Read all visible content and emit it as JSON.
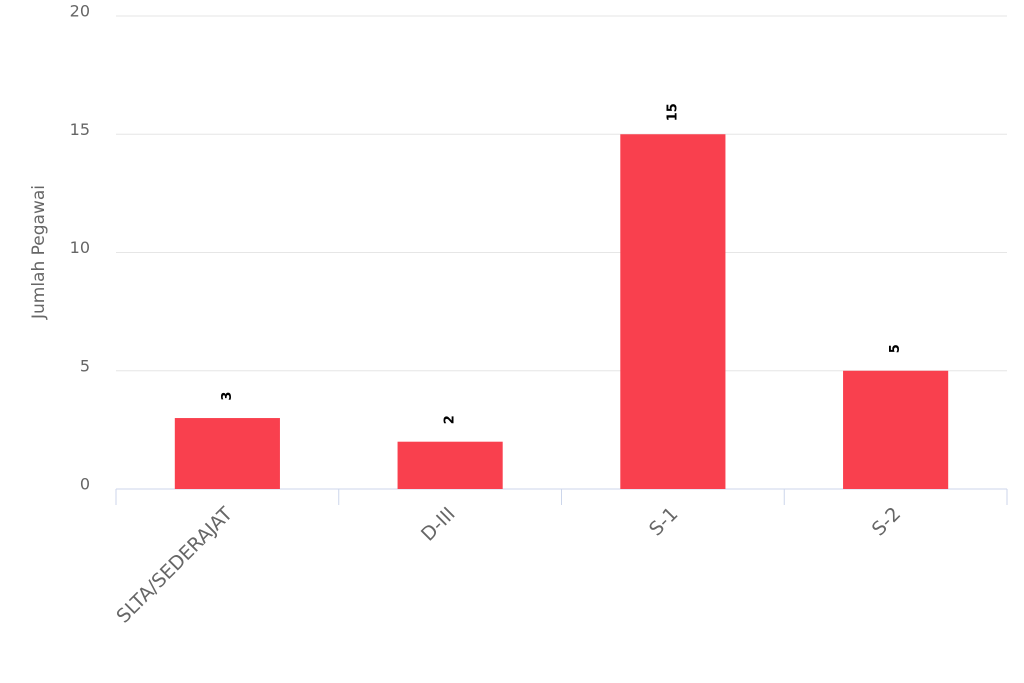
{
  "chart_data": {
    "type": "bar",
    "y_axis_label": "Jumlah Pegawai",
    "categories": [
      "SLTA/SEDERAJAT",
      "D-III",
      "S-1",
      "S-2"
    ],
    "values": [
      3,
      2,
      15,
      5
    ],
    "color": "#f9404e",
    "ylim": [
      0,
      20
    ],
    "yticks": [
      0,
      5,
      10,
      15,
      20
    ],
    "grid": true
  }
}
